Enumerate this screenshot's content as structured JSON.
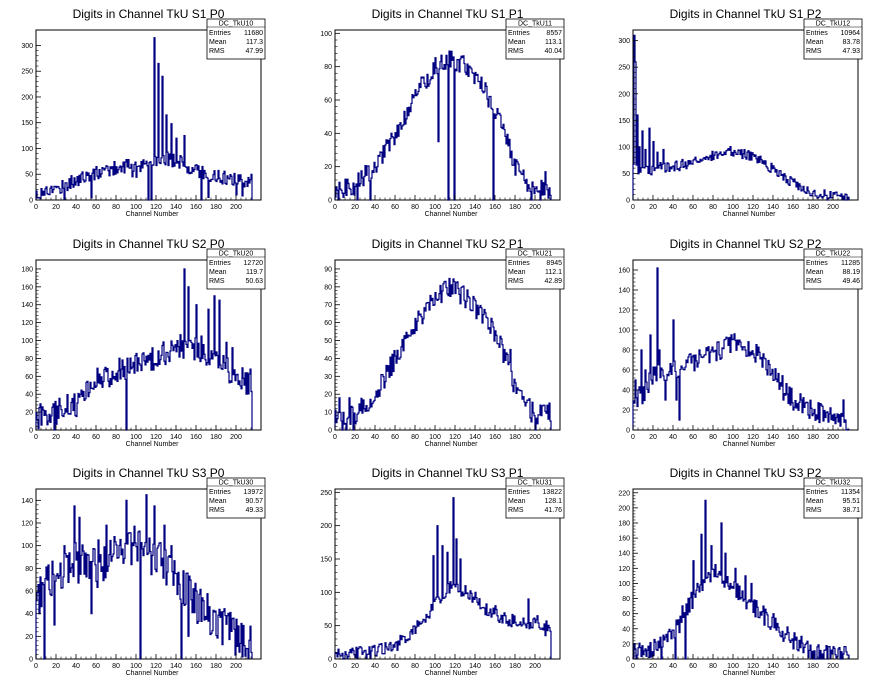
{
  "chart_data": [
    {
      "type": "histogram",
      "title": "Digits in Channel TkU S1 P0",
      "xlabel": "Channel Number",
      "xlim": [
        0,
        216
      ],
      "ylim": [
        0,
        330
      ],
      "xticks": [
        0,
        20,
        40,
        60,
        80,
        100,
        120,
        140,
        160,
        180,
        200
      ],
      "yticks": [
        0,
        50,
        100,
        150,
        200,
        250,
        300
      ],
      "stats": {
        "name": "DC_TkU10",
        "entries": "11680",
        "mean": "117.3",
        "rms": "47.99"
      },
      "profile": [
        [
          0,
          12
        ],
        [
          20,
          22
        ],
        [
          40,
          38
        ],
        [
          60,
          52
        ],
        [
          80,
          63
        ],
        [
          95,
          68
        ],
        [
          105,
          62
        ],
        [
          115,
          78
        ],
        [
          130,
          82
        ],
        [
          145,
          72
        ],
        [
          160,
          58
        ],
        [
          180,
          45
        ],
        [
          200,
          40
        ],
        [
          216,
          38
        ]
      ],
      "noise": 14,
      "spikes": [
        [
          2,
          5
        ],
        [
          28,
          2
        ],
        [
          55,
          4
        ],
        [
          96,
          45
        ],
        [
          100,
          44
        ],
        [
          112,
          0
        ],
        [
          115,
          0
        ],
        [
          118,
          315
        ],
        [
          122,
          265
        ],
        [
          126,
          240
        ],
        [
          130,
          165
        ],
        [
          135,
          148
        ],
        [
          140,
          120
        ],
        [
          148,
          125
        ],
        [
          165,
          0
        ],
        [
          172,
          5
        ],
        [
          200,
          10
        ],
        [
          206,
          8
        ]
      ]
    },
    {
      "type": "histogram",
      "title": "Digits in Channel TkU S1 P1",
      "xlabel": "Channel Number",
      "xlim": [
        0,
        216
      ],
      "ylim": [
        0,
        102
      ],
      "xticks": [
        0,
        20,
        40,
        60,
        80,
        100,
        120,
        140,
        160,
        180,
        200
      ],
      "yticks": [
        0,
        20,
        40,
        60,
        80,
        100
      ],
      "stats": {
        "name": "DC_TkU11",
        "entries": "8557",
        "mean": "113.1",
        "rms": "40.04"
      },
      "profile": [
        [
          0,
          6
        ],
        [
          20,
          9
        ],
        [
          40,
          20
        ],
        [
          60,
          38
        ],
        [
          80,
          62
        ],
        [
          100,
          80
        ],
        [
          115,
          86
        ],
        [
          130,
          80
        ],
        [
          150,
          66
        ],
        [
          170,
          42
        ],
        [
          180,
          20
        ],
        [
          195,
          8
        ],
        [
          216,
          6
        ]
      ],
      "noise": 6,
      "spikes": [
        [
          3,
          0
        ],
        [
          22,
          0
        ],
        [
          35,
          0
        ],
        [
          103,
          35
        ],
        [
          113,
          0
        ],
        [
          119,
          0
        ],
        [
          158,
          0
        ],
        [
          196,
          0
        ],
        [
          205,
          0
        ],
        [
          210,
          17
        ]
      ]
    },
    {
      "type": "histogram",
      "title": "Digits in Channel TkU S1 P2",
      "xlabel": "Channel Number",
      "xlim": [
        0,
        216
      ],
      "ylim": [
        0,
        320
      ],
      "xticks": [
        0,
        20,
        40,
        60,
        80,
        100,
        120,
        140,
        160,
        180,
        200
      ],
      "yticks": [
        0,
        50,
        100,
        150,
        200,
        250,
        300
      ],
      "stats": {
        "name": "DC_TkU12",
        "entries": "10964",
        "mean": "83.78",
        "rms": "47.93"
      },
      "profile": [
        [
          0,
          60
        ],
        [
          15,
          55
        ],
        [
          25,
          62
        ],
        [
          40,
          62
        ],
        [
          60,
          72
        ],
        [
          80,
          82
        ],
        [
          100,
          92
        ],
        [
          120,
          82
        ],
        [
          140,
          58
        ],
        [
          160,
          32
        ],
        [
          180,
          15
        ],
        [
          200,
          6
        ],
        [
          216,
          4
        ]
      ],
      "noise": 10,
      "spikes": [
        [
          1,
          310
        ],
        [
          2,
          260
        ],
        [
          4,
          160
        ],
        [
          6,
          100
        ],
        [
          9,
          130
        ],
        [
          12,
          95
        ],
        [
          16,
          135
        ],
        [
          20,
          110
        ],
        [
          24,
          90
        ],
        [
          30,
          95
        ],
        [
          34,
          70
        ]
      ]
    },
    {
      "type": "histogram",
      "title": "Digits in Channel TkU S2 P0",
      "xlabel": "Channel Number",
      "xlim": [
        0,
        216
      ],
      "ylim": [
        0,
        190
      ],
      "xticks": [
        0,
        20,
        40,
        60,
        80,
        100,
        120,
        140,
        160,
        180,
        200
      ],
      "yticks": [
        0,
        20,
        40,
        60,
        80,
        100,
        120,
        140,
        160,
        180
      ],
      "stats": {
        "name": "DC_TkU20",
        "entries": "12720",
        "mean": "119.7",
        "rms": "50.63"
      },
      "profile": [
        [
          0,
          15
        ],
        [
          20,
          20
        ],
        [
          40,
          30
        ],
        [
          60,
          55
        ],
        [
          80,
          65
        ],
        [
          100,
          75
        ],
        [
          120,
          80
        ],
        [
          140,
          95
        ],
        [
          160,
          90
        ],
        [
          180,
          80
        ],
        [
          200,
          60
        ],
        [
          216,
          50
        ]
      ],
      "noise": 14,
      "spikes": [
        [
          3,
          25
        ],
        [
          12,
          10
        ],
        [
          18,
          0
        ],
        [
          40,
          15
        ],
        [
          90,
          0
        ],
        [
          148,
          180
        ],
        [
          152,
          160
        ],
        [
          160,
          140
        ],
        [
          165,
          105
        ],
        [
          172,
          135
        ],
        [
          178,
          150
        ],
        [
          183,
          145
        ],
        [
          190,
          98
        ],
        [
          196,
          92
        ],
        [
          203,
          55
        ],
        [
          210,
          40
        ],
        [
          214,
          68
        ]
      ]
    },
    {
      "type": "histogram",
      "title": "Digits in Channel TkU S2 P1",
      "xlabel": "Channel Number",
      "xlim": [
        0,
        216
      ],
      "ylim": [
        0,
        95
      ],
      "xticks": [
        0,
        20,
        40,
        60,
        80,
        100,
        120,
        140,
        160,
        180,
        200
      ],
      "yticks": [
        0,
        10,
        20,
        30,
        40,
        50,
        60,
        70,
        80,
        90
      ],
      "stats": {
        "name": "DC_TkU21",
        "entries": "8945",
        "mean": "112.1",
        "rms": "42.89"
      },
      "profile": [
        [
          0,
          8
        ],
        [
          20,
          8
        ],
        [
          40,
          20
        ],
        [
          60,
          40
        ],
        [
          80,
          60
        ],
        [
          100,
          72
        ],
        [
          115,
          80
        ],
        [
          130,
          74
        ],
        [
          150,
          62
        ],
        [
          165,
          50
        ],
        [
          175,
          32
        ],
        [
          185,
          18
        ],
        [
          200,
          8
        ],
        [
          216,
          8
        ]
      ],
      "noise": 6,
      "spikes": [
        [
          4,
          18
        ],
        [
          7,
          0
        ],
        [
          11,
          0
        ],
        [
          14,
          18
        ],
        [
          18,
          0
        ],
        [
          175,
          45
        ],
        [
          200,
          0
        ],
        [
          206,
          8
        ],
        [
          214,
          15
        ]
      ]
    },
    {
      "type": "histogram",
      "title": "Digits in Channel TkU S2 P2",
      "xlabel": "Channel Number",
      "xlim": [
        0,
        216
      ],
      "ylim": [
        0,
        170
      ],
      "xticks": [
        0,
        20,
        40,
        60,
        80,
        100,
        120,
        140,
        160,
        180,
        200
      ],
      "yticks": [
        0,
        20,
        40,
        60,
        80,
        100,
        120,
        140,
        160
      ],
      "stats": {
        "name": "DC_TkU22",
        "entries": "11285",
        "mean": "88.19",
        "rms": "49.46"
      },
      "profile": [
        [
          0,
          30
        ],
        [
          10,
          35
        ],
        [
          20,
          55
        ],
        [
          40,
          60
        ],
        [
          60,
          68
        ],
        [
          80,
          75
        ],
        [
          100,
          88
        ],
        [
          120,
          80
        ],
        [
          140,
          58
        ],
        [
          160,
          30
        ],
        [
          180,
          20
        ],
        [
          200,
          12
        ],
        [
          216,
          8
        ]
      ],
      "noise": 10,
      "spikes": [
        [
          2,
          50
        ],
        [
          5,
          40
        ],
        [
          8,
          80
        ],
        [
          12,
          60
        ],
        [
          17,
          95
        ],
        [
          21,
          55
        ],
        [
          24,
          162
        ],
        [
          26,
          80
        ],
        [
          29,
          60
        ],
        [
          32,
          30
        ],
        [
          40,
          110
        ],
        [
          43,
          30
        ],
        [
          46,
          10
        ],
        [
          150,
          30
        ],
        [
          160,
          20
        ],
        [
          168,
          30
        ],
        [
          175,
          15
        ],
        [
          188,
          25
        ],
        [
          195,
          8
        ],
        [
          210,
          30
        ],
        [
          212,
          10
        ]
      ]
    },
    {
      "type": "histogram",
      "title": "Digits in Channel TkU S3 P0",
      "xlabel": "Channel Number",
      "xlim": [
        0,
        216
      ],
      "ylim": [
        0,
        150
      ],
      "xticks": [
        0,
        20,
        40,
        60,
        80,
        100,
        120,
        140,
        160,
        180,
        200
      ],
      "yticks": [
        0,
        20,
        40,
        60,
        80,
        100,
        120,
        140
      ],
      "stats": {
        "name": "DC_TkU30",
        "entries": "13972",
        "mean": "90.57",
        "rms": "49.33"
      },
      "profile": [
        [
          0,
          60
        ],
        [
          20,
          75
        ],
        [
          40,
          85
        ],
        [
          60,
          80
        ],
        [
          80,
          95
        ],
        [
          100,
          100
        ],
        [
          120,
          90
        ],
        [
          140,
          70
        ],
        [
          160,
          50
        ],
        [
          180,
          35
        ],
        [
          200,
          20
        ],
        [
          216,
          12
        ]
      ],
      "noise": 18,
      "spikes": [
        [
          3,
          40
        ],
        [
          8,
          0
        ],
        [
          18,
          30
        ],
        [
          28,
          100
        ],
        [
          38,
          135
        ],
        [
          43,
          125
        ],
        [
          55,
          40
        ],
        [
          62,
          105
        ],
        [
          70,
          118
        ],
        [
          78,
          108
        ],
        [
          85,
          92
        ],
        [
          90,
          140
        ],
        [
          104,
          0
        ],
        [
          110,
          145
        ],
        [
          118,
          135
        ],
        [
          128,
          118
        ],
        [
          135,
          100
        ],
        [
          145,
          0
        ],
        [
          152,
          20
        ],
        [
          160,
          60
        ]
      ]
    },
    {
      "type": "histogram",
      "title": "Digits in Channel TkU S3 P1",
      "xlabel": "Channel Number",
      "xlim": [
        0,
        216
      ],
      "ylim": [
        0,
        255
      ],
      "xticks": [
        0,
        20,
        40,
        60,
        80,
        100,
        120,
        140,
        160,
        180,
        200
      ],
      "yticks": [
        0,
        50,
        100,
        150,
        200,
        250
      ],
      "stats": {
        "name": "DC_TkU31",
        "entries": "13822",
        "mean": "128.1",
        "rms": "41.76"
      },
      "profile": [
        [
          0,
          5
        ],
        [
          20,
          8
        ],
        [
          40,
          12
        ],
        [
          60,
          20
        ],
        [
          80,
          45
        ],
        [
          100,
          80
        ],
        [
          115,
          110
        ],
        [
          130,
          100
        ],
        [
          150,
          75
        ],
        [
          170,
          60
        ],
        [
          190,
          55
        ],
        [
          205,
          55
        ],
        [
          216,
          50
        ]
      ],
      "noise": 10,
      "spikes": [
        [
          98,
          155
        ],
        [
          102,
          200
        ],
        [
          107,
          170
        ],
        [
          112,
          160
        ],
        [
          118,
          242
        ],
        [
          121,
          180
        ],
        [
          125,
          150
        ],
        [
          130,
          110
        ],
        [
          140,
          100
        ],
        [
          160,
          80
        ],
        [
          165,
          60
        ],
        [
          180,
          55
        ],
        [
          193,
          90
        ],
        [
          198,
          60
        ],
        [
          202,
          65
        ],
        [
          210,
          35
        ]
      ]
    },
    {
      "type": "histogram",
      "title": "Digits in Channel TkU S3 P2",
      "xlabel": "Channel Number",
      "xlim": [
        0,
        216
      ],
      "ylim": [
        0,
        225
      ],
      "xticks": [
        0,
        20,
        40,
        60,
        80,
        100,
        120,
        140,
        160,
        180,
        200
      ],
      "yticks": [
        0,
        20,
        40,
        60,
        80,
        100,
        120,
        140,
        160,
        180,
        200,
        220
      ],
      "stats": {
        "name": "DC_TkU32",
        "entries": "11354",
        "mean": "95.51",
        "rms": "38.71"
      },
      "profile": [
        [
          0,
          8
        ],
        [
          20,
          15
        ],
        [
          40,
          30
        ],
        [
          50,
          60
        ],
        [
          60,
          80
        ],
        [
          80,
          110
        ],
        [
          100,
          95
        ],
        [
          120,
          70
        ],
        [
          140,
          45
        ],
        [
          160,
          25
        ],
        [
          180,
          10
        ],
        [
          200,
          5
        ],
        [
          216,
          5
        ]
      ],
      "noise": 12,
      "spikes": [
        [
          3,
          0
        ],
        [
          28,
          0
        ],
        [
          42,
          0
        ],
        [
          46,
          35
        ],
        [
          52,
          0
        ],
        [
          60,
          130
        ],
        [
          64,
          100
        ],
        [
          68,
          165
        ],
        [
          72,
          210
        ],
        [
          78,
          150
        ],
        [
          82,
          125
        ],
        [
          88,
          180
        ],
        [
          92,
          140
        ],
        [
          97,
          100
        ],
        [
          102,
          120
        ],
        [
          112,
          110
        ],
        [
          118,
          100
        ],
        [
          130,
          70
        ],
        [
          140,
          60
        ],
        [
          155,
          35
        ],
        [
          162,
          25
        ],
        [
          168,
          30
        ],
        [
          175,
          2
        ],
        [
          180,
          0
        ]
      ]
    }
  ]
}
